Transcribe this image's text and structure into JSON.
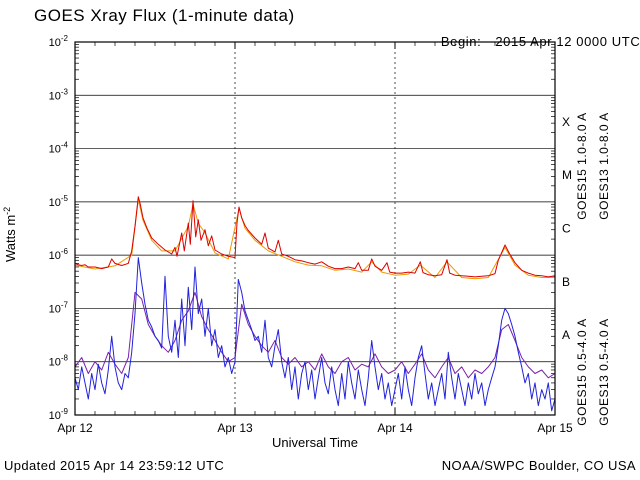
{
  "chart_data": {
    "type": "line",
    "title": "GOES Xray Flux (1-minute data)",
    "begin_label": "Begin:",
    "begin_value": "2015 Apr 12 0000 UTC",
    "xlabel": "Universal Time",
    "ylabel": "Watts m^-2",
    "ylabel_base": "Watts m",
    "ylabel_exp": "-2",
    "x_unit": "hours since begin time",
    "x_range": [
      0,
      72
    ],
    "y_exp_range": [
      -9,
      -2
    ],
    "x_minor_step_hours": 3,
    "grid": {
      "horizontal_decade_lines": true,
      "vertical_day_lines_dashed": true
    },
    "x_ticks": [
      {
        "hour": 0,
        "label": "Apr 12"
      },
      {
        "hour": 24,
        "label": "Apr 13"
      },
      {
        "hour": 48,
        "label": "Apr 14"
      },
      {
        "hour": 72,
        "label": "Apr 15"
      }
    ],
    "y_ticks": [
      {
        "exp": -2,
        "label": "-2"
      },
      {
        "exp": -3,
        "label": "-3"
      },
      {
        "exp": -4,
        "label": "-4"
      },
      {
        "exp": -5,
        "label": "-5"
      },
      {
        "exp": -6,
        "label": "-6"
      },
      {
        "exp": -7,
        "label": "-7"
      },
      {
        "exp": -8,
        "label": "-8"
      },
      {
        "exp": -9,
        "label": "-9"
      }
    ],
    "flare_classes": [
      {
        "label": "X",
        "exp_mid": -3.5
      },
      {
        "label": "M",
        "exp_mid": -4.5
      },
      {
        "label": "C",
        "exp_mid": -5.5
      },
      {
        "label": "B",
        "exp_mid": -6.5
      },
      {
        "label": "A",
        "exp_mid": -7.5
      }
    ],
    "series": [
      {
        "id": "goes13-long",
        "name": "GOES13 1.0-8.0 A",
        "color": "#ee9900",
        "legend_col": 1,
        "legend_row": 0,
        "points": [
          [
            0,
            6.5e-07
          ],
          [
            3,
            5.5e-07
          ],
          [
            6,
            6.3e-07
          ],
          [
            8.5,
            1e-06
          ],
          [
            9.5,
            1.1e-05
          ],
          [
            10.2,
            4.5e-06
          ],
          [
            11.5,
            1.9e-06
          ],
          [
            13,
            1.2e-06
          ],
          [
            15,
            1.2e-06
          ],
          [
            17,
            3.5e-06
          ],
          [
            17.7,
            9e-06
          ],
          [
            18.5,
            4e-06
          ],
          [
            19.5,
            2.6e-06
          ],
          [
            21,
            1.1e-06
          ],
          [
            23,
            8.5e-07
          ],
          [
            24.6,
            7.5e-06
          ],
          [
            25.5,
            3.2e-06
          ],
          [
            27,
            1.9e-06
          ],
          [
            29,
            1.2e-06
          ],
          [
            31,
            9.5e-07
          ],
          [
            33,
            7.5e-07
          ],
          [
            35,
            6.5e-07
          ],
          [
            37,
            6.3e-07
          ],
          [
            39,
            5.2e-07
          ],
          [
            41,
            5.5e-07
          ],
          [
            43,
            4.8e-07
          ],
          [
            44.5,
            7.5e-07
          ],
          [
            46,
            4.8e-07
          ],
          [
            48,
            4.2e-07
          ],
          [
            50,
            4.4e-07
          ],
          [
            51.8,
            6.5e-07
          ],
          [
            54,
            3.8e-07
          ],
          [
            55.8,
            7.5e-07
          ],
          [
            58,
            3.8e-07
          ],
          [
            60,
            3.6e-07
          ],
          [
            62,
            3.8e-07
          ],
          [
            64.5,
            1.4e-06
          ],
          [
            66,
            6.5e-07
          ],
          [
            68,
            4.2e-07
          ],
          [
            70,
            3.8e-07
          ],
          [
            72,
            3.8e-07
          ]
        ]
      },
      {
        "id": "goes13-short",
        "name": "GOES13 0.5-4.0 A",
        "color": "#7a22aa",
        "legend_col": 1,
        "legend_row": 1,
        "t0": 0,
        "dt": 1,
        "values": [
          8e-09,
          1.2e-08,
          6e-09,
          1e-08,
          7e-09,
          1.5e-08,
          9e-09,
          6e-09,
          1.2e-08,
          2e-07,
          1.5e-07,
          5e-08,
          3e-08,
          2e-08,
          1.5e-08,
          2.5e-08,
          6e-08,
          9e-08,
          2e-07,
          7e-08,
          4e-08,
          2.5e-08,
          1.5e-08,
          1e-08,
          1.2e-08,
          1.2e-07,
          5e-08,
          3e-08,
          2e-08,
          1.5e-08,
          2.5e-08,
          1.2e-08,
          9e-09,
          1.2e-08,
          8e-09,
          1e-08,
          7e-09,
          1.4e-08,
          8e-09,
          6e-09,
          1e-08,
          1.2e-08,
          7e-09,
          9e-09,
          8e-09,
          1.4e-08,
          8e-09,
          6e-09,
          7e-09,
          1e-08,
          6e-09,
          9e-09,
          1.4e-08,
          7e-09,
          5e-09,
          8e-09,
          1.2e-08,
          6e-09,
          8e-09,
          5e-09,
          7e-09,
          6e-09,
          8e-09,
          1.2e-08,
          4e-08,
          5e-08,
          2.5e-08,
          1.2e-08,
          8e-09,
          6e-09,
          7e-09,
          5e-09,
          6e-09
        ]
      },
      {
        "id": "goes15-short",
        "name": "GOES15 0.5-4.0 A",
        "color": "#2222dd",
        "legend_col": 0,
        "legend_row": 1,
        "t0": 0,
        "dt": 0.5,
        "values": [
          5e-09,
          3e-09,
          8e-09,
          4e-09,
          2e-09,
          6e-09,
          3e-09,
          9e-09,
          4e-09,
          2.5e-09,
          7e-09,
          3e-08,
          8e-09,
          4e-09,
          3e-09,
          6e-09,
          5e-09,
          1.5e-08,
          8e-08,
          9e-07,
          3e-07,
          1.2e-07,
          6e-08,
          4.5e-08,
          3e-08,
          2.5e-08,
          1.8e-08,
          4e-07,
          3e-08,
          1.5e-08,
          6e-08,
          1.2e-08,
          1.5e-07,
          2e-08,
          2.5e-07,
          4e-08,
          6e-07,
          8e-08,
          1.5e-07,
          3e-08,
          1e-07,
          2e-08,
          4e-08,
          1.2e-08,
          2e-08,
          8e-09,
          1.2e-08,
          6e-09,
          1e-08,
          3.5e-07,
          2e-07,
          9e-08,
          6e-08,
          4e-08,
          2.5e-08,
          3e-08,
          1.5e-08,
          6e-08,
          1.2e-08,
          8e-09,
          2e-08,
          4e-08,
          1e-08,
          5e-09,
          1.2e-08,
          3e-09,
          8e-09,
          2e-09,
          6e-09,
          1e-08,
          3e-09,
          7e-09,
          2e-09,
          5e-09,
          1.2e-08,
          4e-09,
          2.5e-09,
          8e-09,
          3e-09,
          1.5e-09,
          6e-09,
          2e-09,
          1e-08,
          4e-09,
          2e-09,
          7e-09,
          3e-09,
          1.5e-09,
          5e-09,
          2.5e-08,
          8e-09,
          3e-09,
          6e-09,
          2e-09,
          4e-09,
          1.5e-09,
          3e-09,
          6e-09,
          2e-09,
          8e-09,
          3e-09,
          1.5e-09,
          5e-09,
          1.2e-08,
          2e-08,
          6e-09,
          2e-09,
          4e-09,
          1.5e-09,
          3e-09,
          6e-09,
          2e-09,
          1.5e-08,
          5e-09,
          2e-09,
          6e-09,
          3e-09,
          1.5e-09,
          4e-09,
          2e-09,
          6e-09,
          2.5e-09,
          4e-09,
          1.5e-09,
          3e-09,
          5e-09,
          8e-09,
          2e-08,
          6e-08,
          1e-07,
          8e-08,
          5e-08,
          3e-08,
          1.5e-08,
          8e-09,
          4e-09,
          6e-09,
          2e-09,
          4e-09,
          1.5e-09,
          3e-09,
          2e-09,
          4e-09,
          1.2e-09,
          2e-09
        ]
      },
      {
        "id": "goes15-long",
        "name": "GOES15 1.0-8.0 A",
        "color": "#dd0000",
        "legend_col": 0,
        "legend_row": 0,
        "points": [
          [
            0,
            7e-07
          ],
          [
            0.5,
            6.6e-07
          ],
          [
            1,
            6.4e-07
          ],
          [
            1.5,
            6.6e-07
          ],
          [
            2,
            6e-07
          ],
          [
            3,
            6e-07
          ],
          [
            4,
            5.6e-07
          ],
          [
            5,
            6e-07
          ],
          [
            5.5,
            8.5e-07
          ],
          [
            6,
            7e-07
          ],
          [
            7,
            6.4e-07
          ],
          [
            8,
            7e-07
          ],
          [
            8.5,
            1.2e-06
          ],
          [
            9,
            3.5e-06
          ],
          [
            9.5,
            1.25e-05
          ],
          [
            9.8,
            9e-06
          ],
          [
            10.2,
            5e-06
          ],
          [
            10.8,
            3.2e-06
          ],
          [
            11.5,
            2.1e-06
          ],
          [
            12.5,
            1.6e-06
          ],
          [
            13.5,
            1.25e-06
          ],
          [
            14.5,
            1.05e-06
          ],
          [
            15,
            1.4e-06
          ],
          [
            15.3,
            9.5e-07
          ],
          [
            16,
            2.6e-06
          ],
          [
            16.4,
            1.2e-06
          ],
          [
            17,
            4e-06
          ],
          [
            17.3,
            1.6e-06
          ],
          [
            17.7,
            1.05e-05
          ],
          [
            18.1,
            2.2e-06
          ],
          [
            18.5,
            4.6e-06
          ],
          [
            18.9,
            1.9e-06
          ],
          [
            19.5,
            3e-06
          ],
          [
            20,
            1.5e-06
          ],
          [
            20.5,
            2.3e-06
          ],
          [
            21,
            1.25e-06
          ],
          [
            22,
            1.05e-06
          ],
          [
            23,
            9.5e-07
          ],
          [
            24,
            9e-07
          ],
          [
            24.3,
            4e-06
          ],
          [
            24.6,
            8e-06
          ],
          [
            25,
            5e-06
          ],
          [
            25.5,
            3.6e-06
          ],
          [
            26,
            2.9e-06
          ],
          [
            27,
            2.1e-06
          ],
          [
            28,
            1.6e-06
          ],
          [
            28.5,
            2.6e-06
          ],
          [
            29,
            1.35e-06
          ],
          [
            30,
            1.15e-06
          ],
          [
            30.5,
            1.9e-06
          ],
          [
            31,
            1.05e-06
          ],
          [
            32,
            9.5e-07
          ],
          [
            33,
            8.2e-07
          ],
          [
            34,
            7.8e-07
          ],
          [
            35,
            7.2e-07
          ],
          [
            36,
            6.8e-07
          ],
          [
            37,
            7.5e-07
          ],
          [
            38,
            6.2e-07
          ],
          [
            39,
            5.6e-07
          ],
          [
            40,
            5.6e-07
          ],
          [
            41,
            6e-07
          ],
          [
            42,
            5.6e-07
          ],
          [
            42.5,
            7.2e-07
          ],
          [
            43,
            5.2e-07
          ],
          [
            44,
            5.2e-07
          ],
          [
            44.5,
            8.5e-07
          ],
          [
            45,
            6.2e-07
          ],
          [
            46,
            5.2e-07
          ],
          [
            46.8,
            7.2e-07
          ],
          [
            47.2,
            4.8e-07
          ],
          [
            48,
            4.6e-07
          ],
          [
            49,
            4.6e-07
          ],
          [
            50,
            4.8e-07
          ],
          [
            51,
            4.6e-07
          ],
          [
            51.8,
            7.5e-07
          ],
          [
            52.2,
            4.7e-07
          ],
          [
            53,
            4.3e-07
          ],
          [
            54,
            4.1e-07
          ],
          [
            55,
            4.3e-07
          ],
          [
            55.8,
            8.2e-07
          ],
          [
            56.2,
            4.6e-07
          ],
          [
            57,
            4.2e-07
          ],
          [
            58,
            4.1e-07
          ],
          [
            59,
            4e-07
          ],
          [
            60,
            3.9e-07
          ],
          [
            61,
            4e-07
          ],
          [
            62,
            4.1e-07
          ],
          [
            63,
            4.5e-07
          ],
          [
            63.5,
            8e-07
          ],
          [
            64.5,
            1.55e-06
          ],
          [
            65.2,
            1.05e-06
          ],
          [
            66,
            7.2e-07
          ],
          [
            67,
            5.2e-07
          ],
          [
            68,
            4.6e-07
          ],
          [
            69,
            4.2e-07
          ],
          [
            70,
            4.1e-07
          ],
          [
            71,
            3.9e-07
          ],
          [
            72,
            4.1e-07
          ]
        ]
      }
    ],
    "legend": {
      "position": "right-rotated",
      "entries": [
        "GOES15 1.0-8.0 A",
        "GOES13 1.0-8.0 A",
        "GOES15 0.5-4.0 A",
        "GOES13 0.5-4.0 A"
      ]
    }
  },
  "footer": {
    "updated": "Updated 2015 Apr 14 23:59:12 UTC",
    "source": "NOAA/SWPC Boulder, CO USA"
  }
}
